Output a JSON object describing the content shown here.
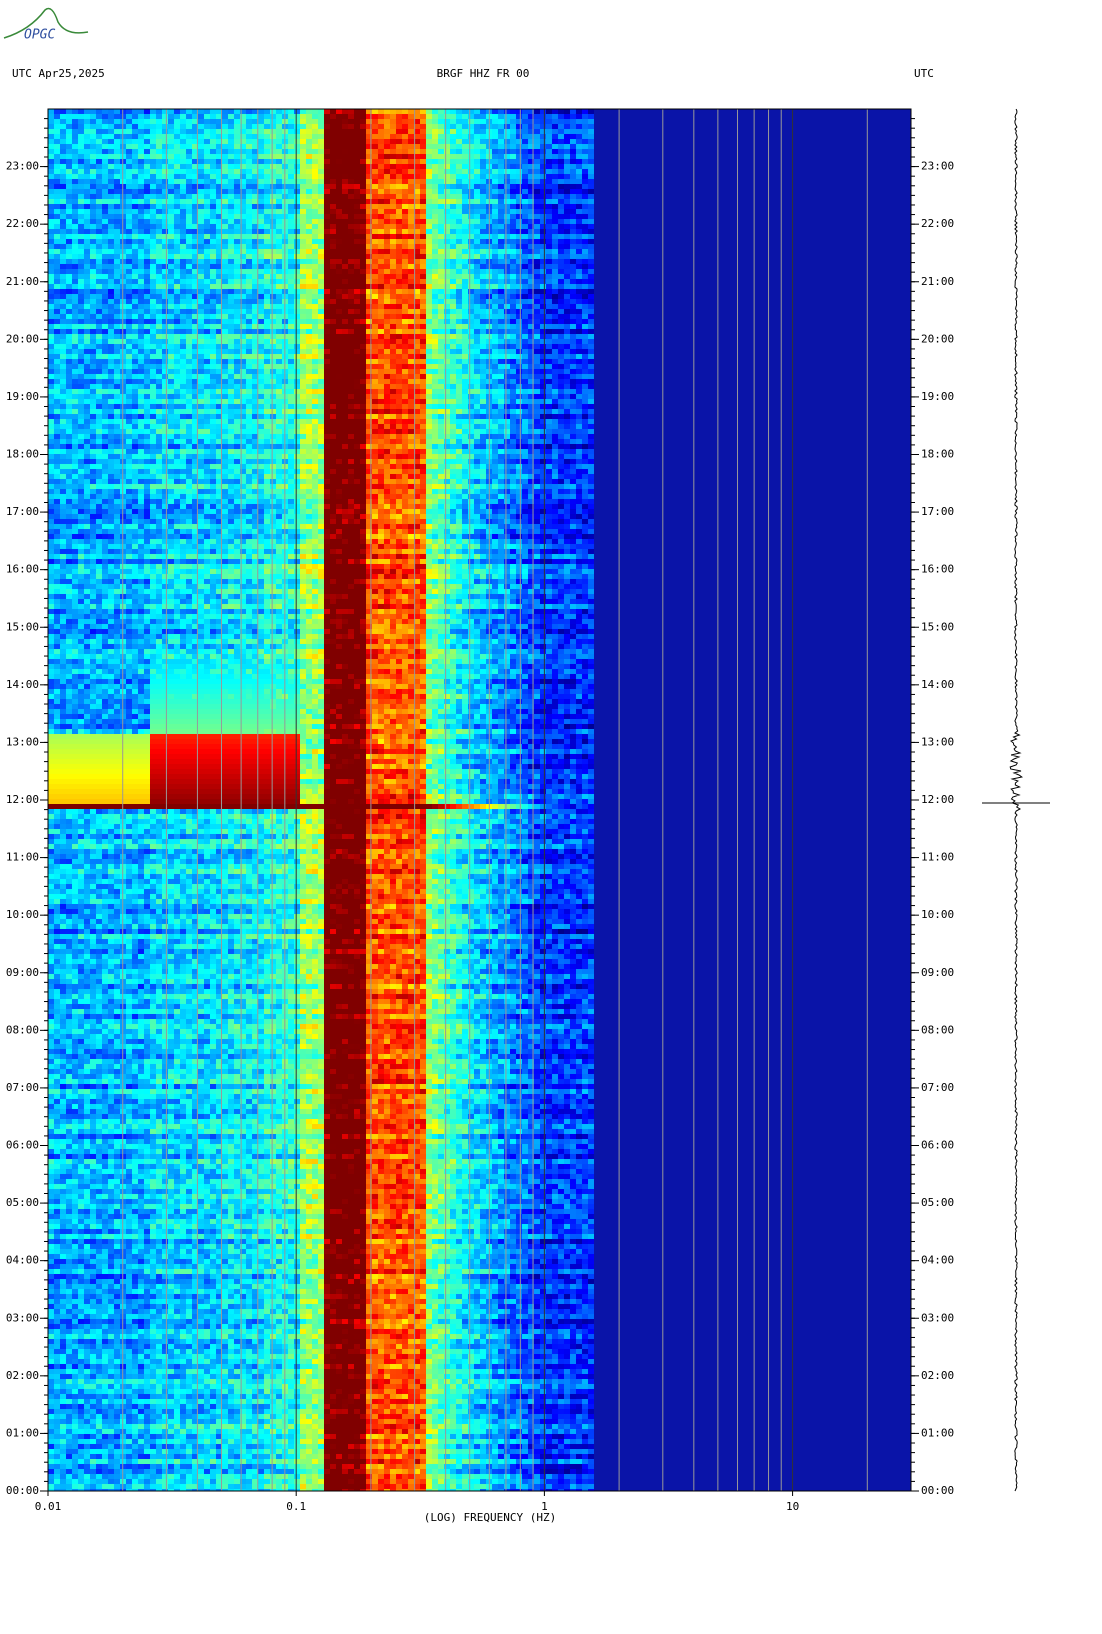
{
  "chart_data": {
    "type": "spectrogram",
    "logo": "OPGC",
    "title_left": "UTC  Apr25,2025",
    "title": "BRGF HHZ FR 00",
    "title_right": "UTC",
    "x_label": "(LOG) FREQUENCY (HZ)",
    "x_log": true,
    "xlim": [
      0.01,
      30
    ],
    "xticks": [
      0.01,
      0.1,
      1,
      10
    ],
    "ylim": [
      0,
      24
    ],
    "yticks": [
      {
        "value": 0,
        "label": "00:00"
      },
      {
        "value": 1,
        "label": "01:00"
      },
      {
        "value": 2,
        "label": "02:00"
      },
      {
        "value": 3,
        "label": "03:00"
      },
      {
        "value": 4,
        "label": "04:00"
      },
      {
        "value": 5,
        "label": "05:00"
      },
      {
        "value": 6,
        "label": "06:00"
      },
      {
        "value": 7,
        "label": "07:00"
      },
      {
        "value": 8,
        "label": "08:00"
      },
      {
        "value": 9,
        "label": "09:00"
      },
      {
        "value": 10,
        "label": "10:00"
      },
      {
        "value": 11,
        "label": "11:00"
      },
      {
        "value": 12,
        "label": "12:00"
      },
      {
        "value": 13,
        "label": "13:00"
      },
      {
        "value": 14,
        "label": "14:00"
      },
      {
        "value": 15,
        "label": "15:00"
      },
      {
        "value": 16,
        "label": "16:00"
      },
      {
        "value": 17,
        "label": "17:00"
      },
      {
        "value": 18,
        "label": "18:00"
      },
      {
        "value": 19,
        "label": "19:00"
      },
      {
        "value": 20,
        "label": "20:00"
      },
      {
        "value": 21,
        "label": "21:00"
      },
      {
        "value": 22,
        "label": "22:00"
      },
      {
        "value": 23,
        "label": "23:00"
      }
    ]
  }
}
